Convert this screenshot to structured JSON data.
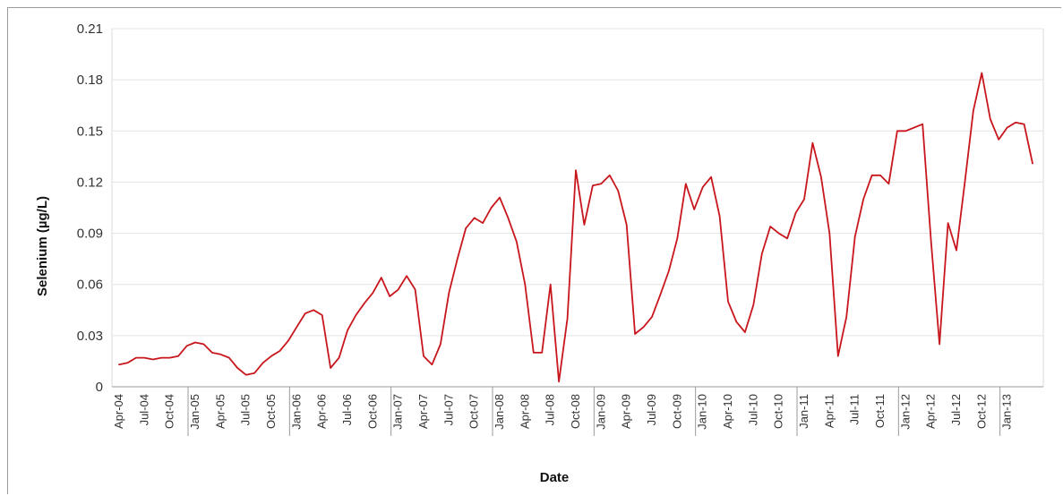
{
  "chart_data": {
    "type": "line",
    "title": "",
    "xlabel": "Date",
    "ylabel": "Selenium (µg/L)",
    "ylim": [
      0,
      0.21
    ],
    "grid": true,
    "legend": "none",
    "y_ticks": [
      "0",
      "0.03",
      "0.06",
      "0.09",
      "0.12",
      "0.15",
      "0.18",
      "0.21"
    ],
    "y_tick_values": [
      0,
      0.03,
      0.06,
      0.09,
      0.12,
      0.15,
      0.18,
      0.21
    ],
    "x_ticks": [
      "Apr-04",
      "Jul-04",
      "Oct-04",
      "Jan-05",
      "Apr-05",
      "Jul-05",
      "Oct-05",
      "Jan-06",
      "Apr-06",
      "Jul-06",
      "Oct-06",
      "Jan-07",
      "Apr-07",
      "Jul-07",
      "Oct-07",
      "Jan-08",
      "Apr-08",
      "Jul-08",
      "Oct-08",
      "Jan-09",
      "Apr-09",
      "Jul-09",
      "Oct-09",
      "Jan-10",
      "Apr-10",
      "Jul-10",
      "Oct-10",
      "Jan-11",
      "Apr-11",
      "Jul-11",
      "Oct-11",
      "Jan-12",
      "Apr-12",
      "Jul-12",
      "Oct-12",
      "Jan-13"
    ],
    "series": [
      {
        "color": "#c8161d",
        "points": [
          [
            "Apr-04",
            0.013
          ],
          [
            "May-04",
            0.014
          ],
          [
            "Jun-04",
            0.017
          ],
          [
            "Jul-04",
            0.017
          ],
          [
            "Aug-04",
            0.016
          ],
          [
            "Sep-04",
            0.017
          ],
          [
            "Oct-04",
            0.017
          ],
          [
            "Nov-04",
            0.018
          ],
          [
            "Dec-04",
            0.024
          ],
          [
            "Jan-05",
            0.026
          ],
          [
            "Feb-05",
            0.025
          ],
          [
            "Mar-05",
            0.02
          ],
          [
            "Apr-05",
            0.019
          ],
          [
            "May-05",
            0.017
          ],
          [
            "Jun-05",
            0.011
          ],
          [
            "Jul-05",
            0.007
          ],
          [
            "Aug-05",
            0.008
          ],
          [
            "Sep-05",
            0.014
          ],
          [
            "Oct-05",
            0.018
          ],
          [
            "Nov-05",
            0.021
          ],
          [
            "Dec-05",
            0.027
          ],
          [
            "Jan-06",
            0.035
          ],
          [
            "Feb-06",
            0.043
          ],
          [
            "Mar-06",
            0.045
          ],
          [
            "Apr-06",
            0.042
          ],
          [
            "May-06",
            0.011
          ],
          [
            "Jun-06",
            0.017
          ],
          [
            "Jul-06",
            0.033
          ],
          [
            "Aug-06",
            0.042
          ],
          [
            "Sep-06",
            0.049
          ],
          [
            "Oct-06",
            0.055
          ],
          [
            "Nov-06",
            0.064
          ],
          [
            "Dec-06",
            0.053
          ],
          [
            "Jan-07",
            0.057
          ],
          [
            "Feb-07",
            0.065
          ],
          [
            "Mar-07",
            0.057
          ],
          [
            "Apr-07",
            0.018
          ],
          [
            "May-07",
            0.013
          ],
          [
            "Jun-07",
            0.025
          ],
          [
            "Jul-07",
            0.055
          ],
          [
            "Aug-07",
            0.075
          ],
          [
            "Sep-07",
            0.093
          ],
          [
            "Oct-07",
            0.099
          ],
          [
            "Nov-07",
            0.096
          ],
          [
            "Dec-07",
            0.105
          ],
          [
            "Jan-08",
            0.111
          ],
          [
            "Feb-08",
            0.099
          ],
          [
            "Mar-08",
            0.085
          ],
          [
            "Apr-08",
            0.06
          ],
          [
            "May-08",
            0.02
          ],
          [
            "Jun-08",
            0.02
          ],
          [
            "Jul-08",
            0.06
          ],
          [
            "Aug-08",
            0.003
          ],
          [
            "Sep-08",
            0.04
          ],
          [
            "Oct-08",
            0.127
          ],
          [
            "Nov-08",
            0.095
          ],
          [
            "Dec-08",
            0.118
          ],
          [
            "Jan-09",
            0.119
          ],
          [
            "Feb-09",
            0.124
          ],
          [
            "Mar-09",
            0.115
          ],
          [
            "Apr-09",
            0.095
          ],
          [
            "May-09",
            0.031
          ],
          [
            "Jun-09",
            0.035
          ],
          [
            "Jul-09",
            0.041
          ],
          [
            "Aug-09",
            0.054
          ],
          [
            "Sep-09",
            0.068
          ],
          [
            "Oct-09",
            0.087
          ],
          [
            "Nov-09",
            0.119
          ],
          [
            "Dec-09",
            0.104
          ],
          [
            "Jan-10",
            0.117
          ],
          [
            "Feb-10",
            0.123
          ],
          [
            "Mar-10",
            0.1
          ],
          [
            "Apr-10",
            0.05
          ],
          [
            "May-10",
            0.038
          ],
          [
            "Jun-10",
            0.032
          ],
          [
            "Jul-10",
            0.048
          ],
          [
            "Aug-10",
            0.078
          ],
          [
            "Sep-10",
            0.094
          ],
          [
            "Oct-10",
            0.09
          ],
          [
            "Nov-10",
            0.087
          ],
          [
            "Dec-10",
            0.102
          ],
          [
            "Jan-11",
            0.11
          ],
          [
            "Feb-11",
            0.143
          ],
          [
            "Mar-11",
            0.123
          ],
          [
            "Apr-11",
            0.09
          ],
          [
            "May-11",
            0.018
          ],
          [
            "Jun-11",
            0.041
          ],
          [
            "Jul-11",
            0.088
          ],
          [
            "Aug-11",
            0.11
          ],
          [
            "Sep-11",
            0.124
          ],
          [
            "Oct-11",
            0.124
          ],
          [
            "Nov-11",
            0.119
          ],
          [
            "Dec-11",
            0.15
          ],
          [
            "Jan-12",
            0.15
          ],
          [
            "Feb-12",
            0.152
          ],
          [
            "Mar-12",
            0.154
          ],
          [
            "Apr-12",
            0.085
          ],
          [
            "May-12",
            0.025
          ],
          [
            "Jun-12",
            0.096
          ],
          [
            "Jul-12",
            0.08
          ],
          [
            "Aug-12",
            0.12
          ],
          [
            "Sep-12",
            0.162
          ],
          [
            "Oct-12",
            0.184
          ],
          [
            "Nov-12",
            0.157
          ],
          [
            "Dec-12",
            0.145
          ],
          [
            "Jan-13",
            0.152
          ],
          [
            "Feb-13",
            0.155
          ],
          [
            "Mar-13",
            0.154
          ],
          [
            "Apr-13",
            0.131
          ]
        ]
      }
    ]
  }
}
